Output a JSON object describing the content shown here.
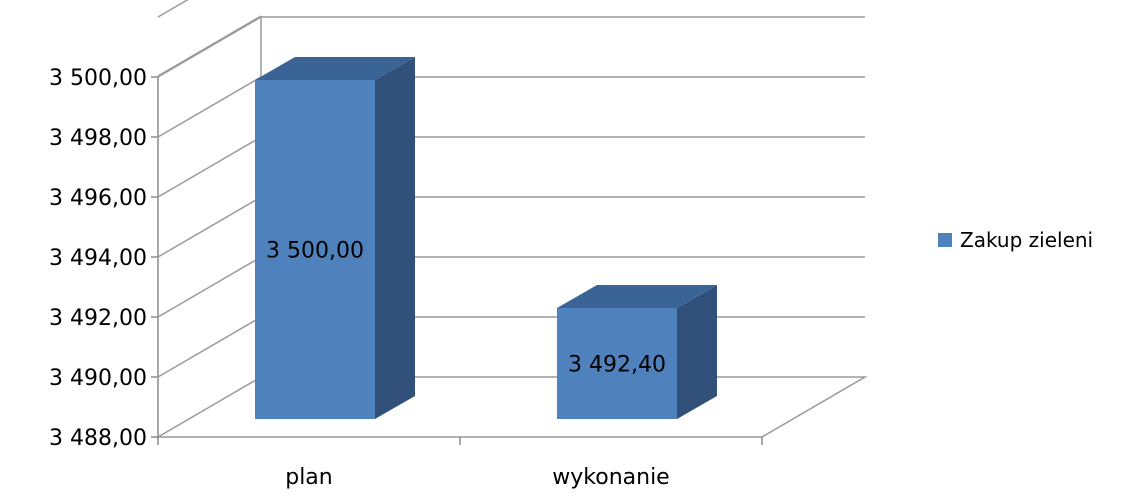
{
  "chart_data": {
    "type": "bar",
    "categories": [
      "plan",
      "wykonanie"
    ],
    "series": [
      {
        "name": "Zakup zieleni",
        "values": [
          3500.0,
          3492.4
        ],
        "value_labels": [
          "3 500,00",
          "3 492,40"
        ],
        "color": "#4f81bd"
      }
    ],
    "ylim": [
      3488,
      3502
    ],
    "y_ticks": [
      3488,
      3490,
      3492,
      3494,
      3496,
      3498,
      3500
    ],
    "y_tick_labels": [
      "3 488,00",
      "3 490,00",
      "3 492,00",
      "3 494,00",
      "3 496,00",
      "3 498,00",
      "3 500,00"
    ],
    "grid": true,
    "legend_position": "right",
    "three_d": true,
    "colors": {
      "bar_front": "#4f81bd",
      "bar_side": "#31517a",
      "bar_top": "#3b6496",
      "grid": "#9a9a9a",
      "axis": "#8c8c8c"
    }
  }
}
